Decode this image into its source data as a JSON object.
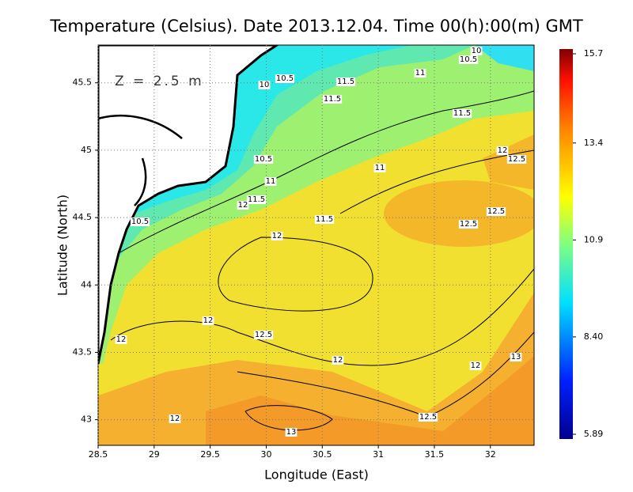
{
  "chart_data": {
    "type": "contour-map",
    "title": "Temperature (Celsius). Date 2013.12.04. Time 00(h):00(m) GMT",
    "annotation": "Z = 2.5 m",
    "x_label": "Longitude (East)",
    "y_label": "Latitude (North)",
    "xlim": [
      28.5,
      32.39
    ],
    "ylim": [
      42.81,
      45.78
    ],
    "xticks": [
      28.5,
      29,
      29.5,
      30,
      30.5,
      31,
      31.5,
      32
    ],
    "yticks": [
      43,
      43.5,
      44,
      44.5,
      45,
      45.5
    ],
    "grid": true,
    "colorbar": {
      "lim": [
        5.89,
        15.7
      ],
      "ticks": [
        5.89,
        {
          "value": 8.4,
          "label": "8.40"
        },
        10.9,
        13.4,
        15.7
      ]
    },
    "contour_labels": [
      10,
      10.5,
      11,
      10.5,
      10,
      11.5,
      11.5,
      11.5,
      12,
      12.5,
      10.5,
      11,
      11,
      11.5,
      12,
      12.5,
      11.5,
      12.5,
      10.5,
      12,
      12,
      12.5,
      12,
      13,
      12,
      12,
      12.5,
      12,
      13
    ]
  }
}
